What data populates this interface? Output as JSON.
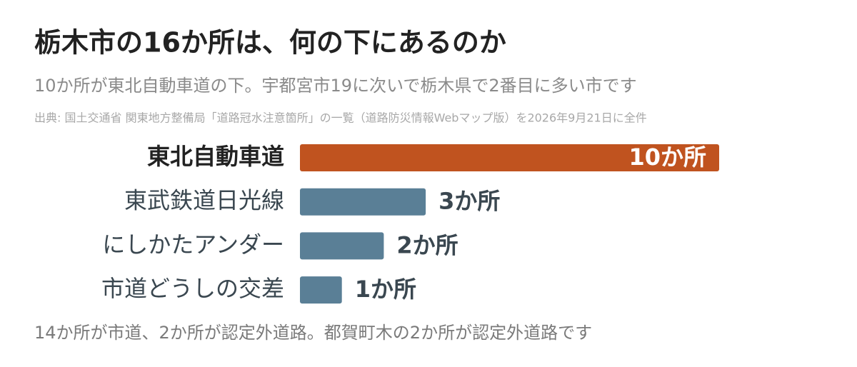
{
  "chart_data": {
    "type": "hbar",
    "title": "栃木市の16か所は、何の下にあるのか",
    "subtitle": "10か所が東北自動車道の下。宇都宮市19に次いで栃木県で2番目に多い市です",
    "source": "出典: 国土交通省 関東地方整備局「道路冠水注意箇所」の一覧（道路防災情報Webマップ版）を2026年9月21日に全件",
    "categories": [
      "東北自動車道",
      "東武鉄道日光線",
      "にしかたアンダー",
      "市道どうしの交差"
    ],
    "values": [
      10,
      3,
      2,
      1
    ],
    "value_labels": [
      "10か所",
      "3か所",
      "2か所",
      "1か所"
    ],
    "colors": [
      "#c0531f",
      "#5a7f96",
      "#5a7f96",
      "#5a7f96"
    ],
    "note": "14か所が市道、2か所が認定外道路。都賀町木の2か所が認定外道路です"
  }
}
